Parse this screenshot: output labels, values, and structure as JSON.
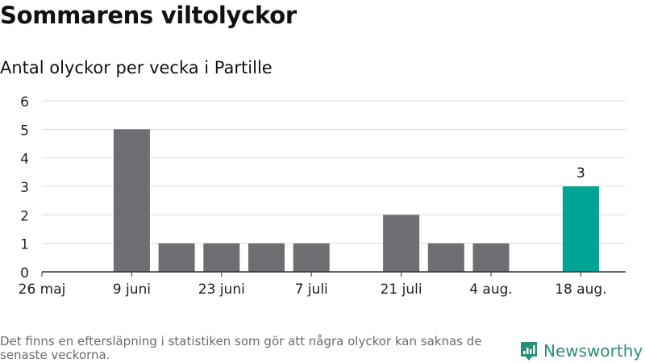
{
  "title": "Sommarens viltolyckor",
  "subtitle": "Antal olyckor per vecka i Partille",
  "note": "Det finns en eftersläpning i statistiken som gör att några olyckor kan saknas de senaste veckorna.",
  "brand": {
    "name": "Newsworthy",
    "color": "#2c8f77"
  },
  "colors": {
    "bar": "#6e6d72",
    "highlight": "#00a394",
    "grid": "#dddddd",
    "axis": "#333333"
  },
  "chart_data": {
    "type": "bar",
    "x_tick_labels": [
      "26 maj",
      "9 juni",
      "23 juni",
      "7 juli",
      "21 juli",
      "4 aug.",
      "18 aug."
    ],
    "weeks": [
      "26 maj",
      "2 juni",
      "9 juni",
      "16 juni",
      "23 juni",
      "30 juni",
      "7 juli",
      "14 juli",
      "21 juli",
      "28 juli",
      "4 aug.",
      "11 aug.",
      "18 aug."
    ],
    "values": [
      0,
      0,
      5,
      1,
      1,
      1,
      1,
      0,
      2,
      1,
      1,
      0,
      3
    ],
    "highlight_index": 12,
    "data_labels": [
      {
        "index": 12,
        "text": "3"
      }
    ],
    "ylim": [
      0,
      6
    ],
    "yticks": [
      0,
      1,
      2,
      3,
      4,
      5,
      6
    ],
    "grid": true
  }
}
